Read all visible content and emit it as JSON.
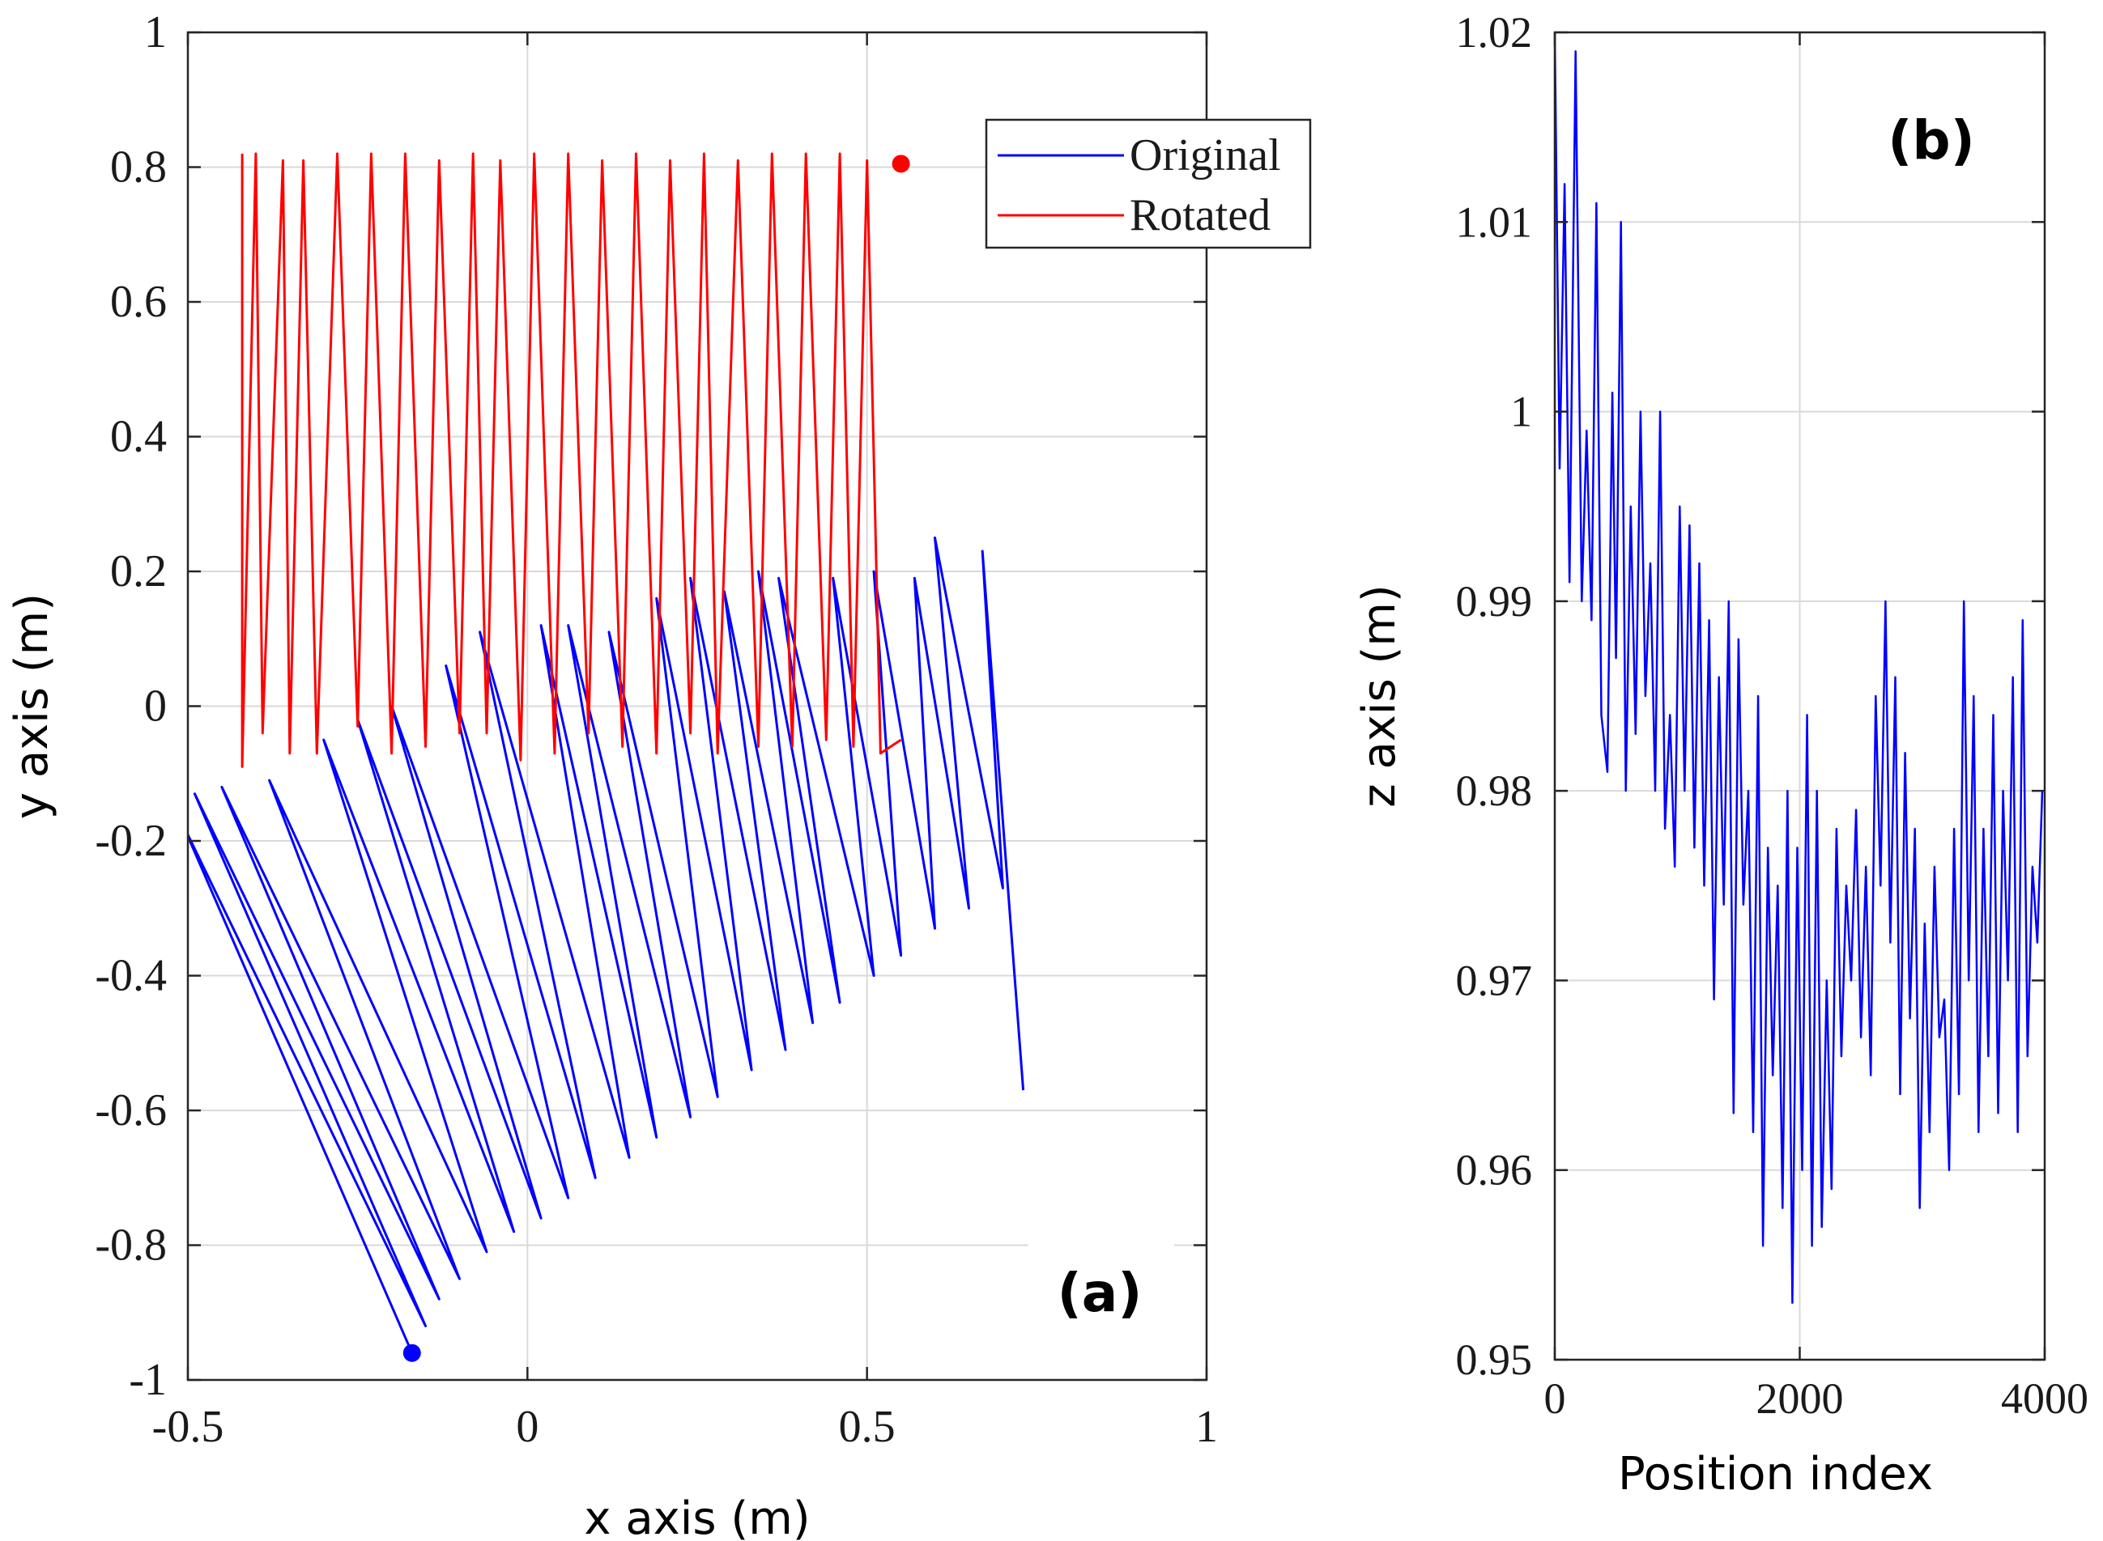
{
  "chart_data": [
    {
      "type": "line",
      "panel": "(a)",
      "xlabel": "x axis (m)",
      "ylabel": "y axis (m)",
      "xlim": [
        -0.5,
        1
      ],
      "ylim": [
        -1,
        1
      ],
      "xticks": [
        -0.5,
        0,
        0.5,
        1
      ],
      "xtick_labels": [
        "-0.5",
        "0",
        "0.5",
        "1"
      ],
      "yticks": [
        -1,
        -0.8,
        -0.6,
        -0.4,
        -0.2,
        0,
        0.2,
        0.4,
        0.6,
        0.8,
        1
      ],
      "ytick_labels": [
        "-1",
        "-0.8",
        "-0.6",
        "-0.4",
        "-0.2",
        "0",
        "0.2",
        "0.4",
        "0.6",
        "0.8",
        "1"
      ],
      "grid": true,
      "legend": {
        "placement": "top-right",
        "entries": [
          "Original",
          "Rotated"
        ]
      },
      "series": [
        {
          "name": "Original",
          "color": "#0000ff",
          "x": [
            -0.17,
            -0.51,
            -0.15,
            -0.49,
            -0.13,
            -0.45,
            -0.1,
            -0.38,
            -0.06,
            -0.3,
            -0.02,
            -0.25,
            0.02,
            -0.2,
            0.06,
            -0.12,
            0.1,
            -0.07,
            0.15,
            0.02,
            0.19,
            0.06,
            0.24,
            0.12,
            0.28,
            0.19,
            0.33,
            0.24,
            0.38,
            0.29,
            0.42,
            0.34,
            0.46,
            0.37,
            0.51,
            0.45,
            0.55,
            0.51,
            0.6,
            0.57,
            0.65,
            0.6,
            0.7,
            0.67,
            0.73
          ],
          "y": [
            -0.96,
            -0.17,
            -0.92,
            -0.13,
            -0.88,
            -0.12,
            -0.85,
            -0.11,
            -0.81,
            -0.05,
            -0.78,
            -0.02,
            -0.76,
            0.0,
            -0.73,
            0.06,
            -0.7,
            0.11,
            -0.67,
            0.12,
            -0.64,
            0.12,
            -0.61,
            0.11,
            -0.58,
            0.16,
            -0.54,
            0.19,
            -0.51,
            0.17,
            -0.47,
            0.2,
            -0.44,
            0.19,
            -0.4,
            0.19,
            -0.37,
            0.2,
            -0.33,
            0.19,
            -0.3,
            0.25,
            -0.27,
            0.23,
            -0.57
          ]
        },
        {
          "name": "Rotated",
          "color": "#ff0000",
          "x": [
            -0.42,
            -0.42,
            -0.4,
            -0.39,
            -0.36,
            -0.35,
            -0.33,
            -0.31,
            -0.28,
            -0.25,
            -0.23,
            -0.2,
            -0.18,
            -0.15,
            -0.13,
            -0.1,
            -0.08,
            -0.06,
            -0.04,
            -0.01,
            0.01,
            0.04,
            0.06,
            0.09,
            0.11,
            0.14,
            0.16,
            0.19,
            0.21,
            0.24,
            0.26,
            0.28,
            0.31,
            0.34,
            0.36,
            0.39,
            0.41,
            0.44,
            0.46,
            0.48,
            0.5,
            0.52,
            0.55
          ],
          "y": [
            0.82,
            -0.09,
            0.82,
            -0.04,
            0.81,
            -0.07,
            0.81,
            -0.07,
            0.82,
            -0.03,
            0.82,
            -0.07,
            0.82,
            -0.06,
            0.81,
            -0.04,
            0.82,
            -0.04,
            0.81,
            -0.08,
            0.82,
            -0.07,
            0.82,
            -0.04,
            0.81,
            -0.06,
            0.82,
            -0.07,
            0.81,
            -0.04,
            0.82,
            -0.07,
            0.81,
            -0.06,
            0.82,
            -0.06,
            0.82,
            -0.05,
            0.82,
            -0.06,
            0.81,
            -0.07,
            -0.05
          ]
        }
      ],
      "markers": [
        {
          "series": "Rotated",
          "x": 0.55,
          "y": 0.805,
          "color": "#ff0000"
        },
        {
          "series": "Original",
          "x": -0.17,
          "y": -0.96,
          "color": "#0000ff"
        }
      ]
    },
    {
      "type": "line",
      "panel": "(b)",
      "xlabel": "Position index",
      "ylabel": "z axis (m)",
      "xlim": [
        0,
        4000
      ],
      "ylim": [
        0.95,
        1.02
      ],
      "xticks": [
        0,
        2000,
        4000
      ],
      "xtick_labels": [
        "0",
        "2000",
        "4000"
      ],
      "yticks": [
        0.95,
        0.96,
        0.97,
        0.98,
        0.99,
        1,
        1.01,
        1.02
      ],
      "ytick_labels": [
        "0.95",
        "0.96",
        "0.97",
        "0.98",
        "0.99",
        "1",
        "1.01",
        "1.02"
      ],
      "grid": true,
      "series": [
        {
          "name": "z",
          "color": "#0000ff",
          "x": [
            0,
            40,
            80,
            120,
            170,
            220,
            260,
            300,
            340,
            380,
            430,
            470,
            500,
            540,
            580,
            620,
            660,
            700,
            740,
            780,
            820,
            860,
            900,
            940,
            980,
            1020,
            1060,
            1100,
            1140,
            1180,
            1220,
            1260,
            1300,
            1340,
            1380,
            1420,
            1460,
            1500,
            1540,
            1580,
            1620,
            1660,
            1700,
            1740,
            1780,
            1820,
            1860,
            1900,
            1940,
            1980,
            2020,
            2060,
            2100,
            2140,
            2180,
            2220,
            2260,
            2300,
            2340,
            2380,
            2420,
            2460,
            2500,
            2540,
            2580,
            2620,
            2660,
            2700,
            2740,
            2780,
            2820,
            2860,
            2900,
            2940,
            2980,
            3020,
            3060,
            3100,
            3140,
            3180,
            3220,
            3260,
            3300,
            3340,
            3380,
            3420,
            3460,
            3500,
            3540,
            3580,
            3620,
            3660,
            3700,
            3740,
            3780,
            3820,
            3860,
            3900,
            3940,
            3980
          ],
          "y": [
            1.02,
            0.997,
            1.012,
            0.991,
            1.019,
            0.99,
            0.999,
            0.989,
            1.011,
            0.984,
            0.981,
            1.001,
            0.987,
            1.01,
            0.98,
            0.995,
            0.983,
            1.0,
            0.985,
            0.992,
            0.98,
            1.0,
            0.978,
            0.984,
            0.976,
            0.995,
            0.98,
            0.994,
            0.977,
            0.992,
            0.975,
            0.989,
            0.969,
            0.986,
            0.974,
            0.99,
            0.963,
            0.988,
            0.974,
            0.98,
            0.962,
            0.985,
            0.956,
            0.977,
            0.965,
            0.975,
            0.958,
            0.98,
            0.953,
            0.977,
            0.96,
            0.984,
            0.956,
            0.98,
            0.957,
            0.97,
            0.959,
            0.978,
            0.966,
            0.975,
            0.97,
            0.979,
            0.967,
            0.976,
            0.965,
            0.985,
            0.975,
            0.99,
            0.972,
            0.986,
            0.964,
            0.982,
            0.968,
            0.978,
            0.958,
            0.973,
            0.962,
            0.976,
            0.967,
            0.969,
            0.96,
            0.978,
            0.964,
            0.99,
            0.97,
            0.985,
            0.962,
            0.978,
            0.966,
            0.984,
            0.963,
            0.98,
            0.97,
            0.986,
            0.962,
            0.989,
            0.966,
            0.976,
            0.972,
            0.98
          ]
        }
      ]
    }
  ]
}
